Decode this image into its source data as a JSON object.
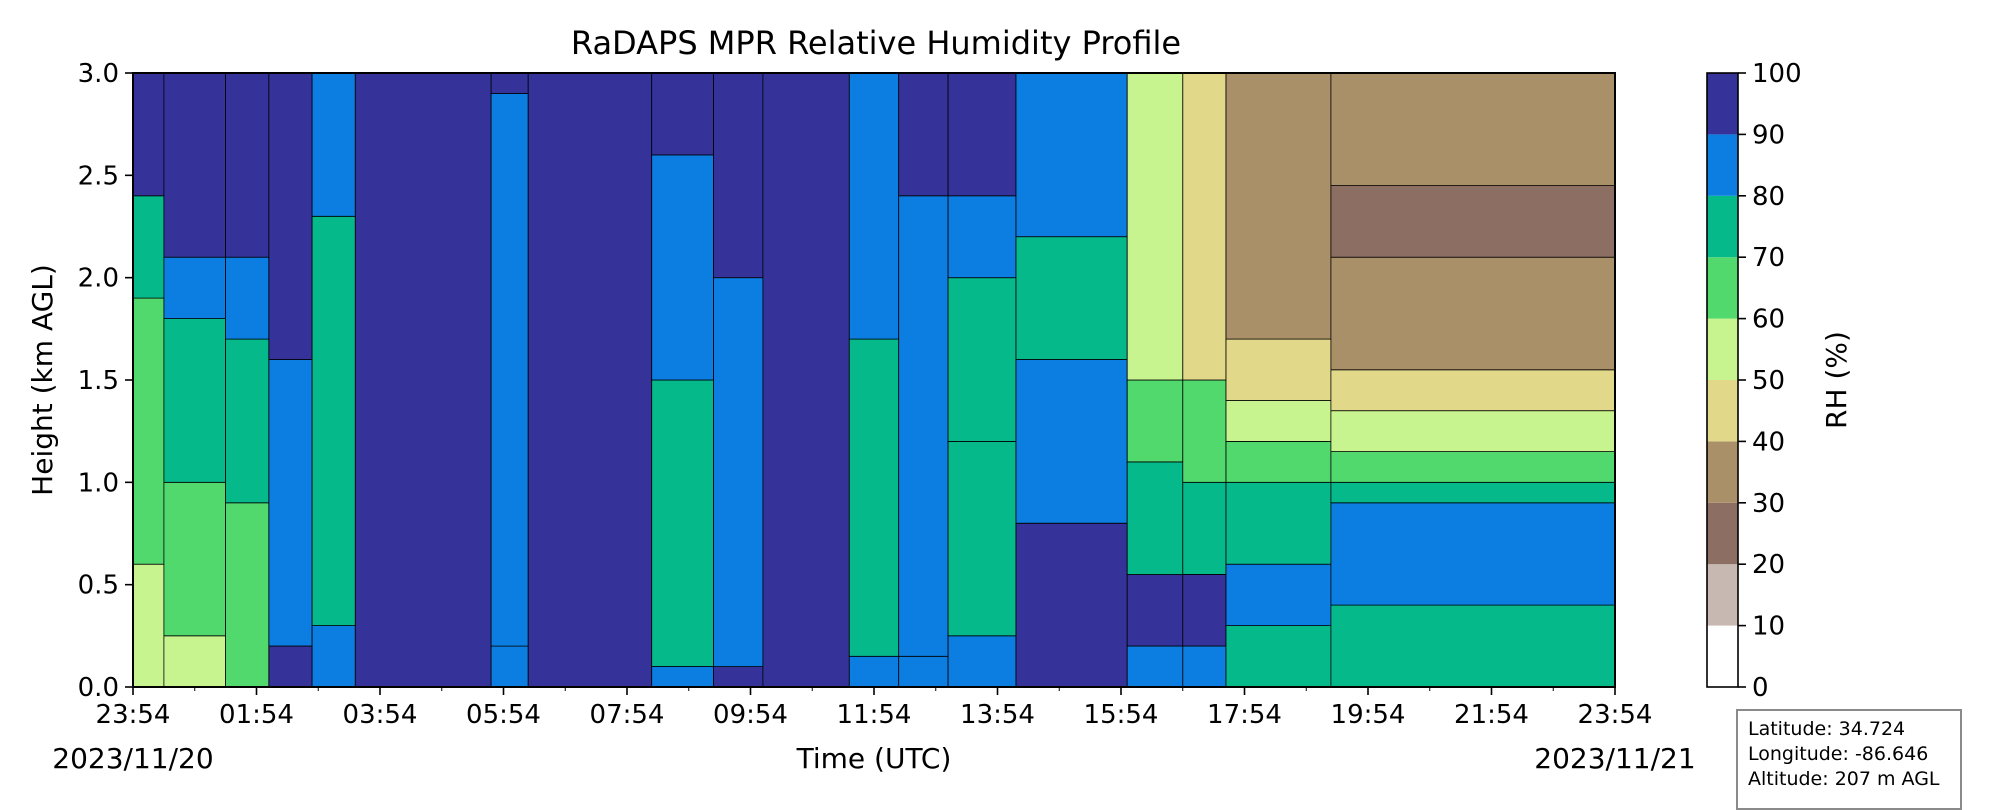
{
  "chart_data": {
    "type": "heatmap",
    "style": "filled contour",
    "title": "RaDAPS MPR Relative Humidity Profile",
    "xlabel": "Time (UTC)",
    "ylabel": "Height (km AGL)",
    "x_ticks": [
      "23:54",
      "01:54",
      "03:54",
      "05:54",
      "07:54",
      "09:54",
      "11:54",
      "13:54",
      "15:54",
      "17:54",
      "19:54",
      "21:54",
      "23:54"
    ],
    "x_range_hours": [
      0,
      24
    ],
    "start_date": "2023/11/20",
    "end_date": "2023/11/21",
    "ylim": [
      0,
      3.0
    ],
    "y_ticks": [
      "0.0",
      "0.5",
      "1.0",
      "1.5",
      "2.0",
      "2.5",
      "3.0"
    ],
    "colorbar": {
      "label": "RH (%)",
      "ticks": [
        "0",
        "10",
        "20",
        "30",
        "40",
        "50",
        "60",
        "70",
        "80",
        "90",
        "100"
      ],
      "levels": [
        0,
        10,
        20,
        30,
        40,
        50,
        60,
        70,
        80,
        90,
        100
      ],
      "colors": [
        "#ffffff",
        "#c8b8b2",
        "#8c6e62",
        "#a99068",
        "#e2d88a",
        "#c7f48e",
        "#52d96e",
        "#05b98b",
        "#0c7ee2",
        "#35329a"
      ]
    },
    "time_segments": [
      {
        "start_h": 0.0,
        "end_h": 0.5,
        "profile": [
          [
            0.6,
            55
          ],
          [
            1.9,
            65
          ],
          [
            2.4,
            75
          ],
          [
            3.0,
            95
          ]
        ]
      },
      {
        "start_h": 0.5,
        "end_h": 1.5,
        "profile": [
          [
            0.25,
            55
          ],
          [
            1.0,
            65
          ],
          [
            1.8,
            75
          ],
          [
            2.1,
            85
          ],
          [
            3.0,
            95
          ]
        ]
      },
      {
        "start_h": 1.5,
        "end_h": 2.2,
        "profile": [
          [
            0.9,
            65
          ],
          [
            1.7,
            75
          ],
          [
            2.1,
            85
          ],
          [
            3.0,
            95
          ]
        ]
      },
      {
        "start_h": 2.2,
        "end_h": 2.9,
        "profile": [
          [
            0.2,
            95
          ],
          [
            1.6,
            85
          ],
          [
            3.0,
            95
          ]
        ]
      },
      {
        "start_h": 2.9,
        "end_h": 3.6,
        "profile": [
          [
            0.3,
            85
          ],
          [
            2.3,
            75
          ],
          [
            3.0,
            85
          ]
        ]
      },
      {
        "start_h": 3.6,
        "end_h": 5.8,
        "profile": [
          [
            3.0,
            95
          ]
        ]
      },
      {
        "start_h": 5.8,
        "end_h": 6.4,
        "profile": [
          [
            0.2,
            85
          ],
          [
            2.9,
            85
          ],
          [
            3.0,
            95
          ]
        ]
      },
      {
        "start_h": 6.4,
        "end_h": 8.4,
        "profile": [
          [
            3.0,
            95
          ]
        ]
      },
      {
        "start_h": 8.4,
        "end_h": 9.4,
        "profile": [
          [
            0.1,
            85
          ],
          [
            1.5,
            75
          ],
          [
            2.6,
            85
          ],
          [
            3.0,
            95
          ]
        ]
      },
      {
        "start_h": 9.4,
        "end_h": 10.2,
        "profile": [
          [
            0.1,
            95
          ],
          [
            2.0,
            85
          ],
          [
            3.0,
            95
          ]
        ]
      },
      {
        "start_h": 10.2,
        "end_h": 11.6,
        "profile": [
          [
            3.0,
            95
          ]
        ]
      },
      {
        "start_h": 11.6,
        "end_h": 12.4,
        "profile": [
          [
            0.15,
            85
          ],
          [
            1.7,
            75
          ],
          [
            3.0,
            85
          ]
        ]
      },
      {
        "start_h": 12.4,
        "end_h": 13.2,
        "profile": [
          [
            0.15,
            85
          ],
          [
            2.4,
            85
          ],
          [
            3.0,
            95
          ]
        ]
      },
      {
        "start_h": 13.2,
        "end_h": 14.3,
        "profile": [
          [
            0.25,
            85
          ],
          [
            1.2,
            75
          ],
          [
            2.0,
            75
          ],
          [
            2.4,
            85
          ],
          [
            3.0,
            95
          ]
        ]
      },
      {
        "start_h": 14.3,
        "end_h": 16.1,
        "profile": [
          [
            0.8,
            95
          ],
          [
            1.6,
            85
          ],
          [
            2.2,
            75
          ],
          [
            3.0,
            85
          ]
        ]
      },
      {
        "start_h": 16.1,
        "end_h": 17.0,
        "profile": [
          [
            0.2,
            85
          ],
          [
            0.55,
            95
          ],
          [
            1.1,
            75
          ],
          [
            1.5,
            65
          ],
          [
            3.0,
            55
          ]
        ]
      },
      {
        "start_h": 17.0,
        "end_h": 17.7,
        "profile": [
          [
            0.2,
            85
          ],
          [
            0.55,
            95
          ],
          [
            1.0,
            75
          ],
          [
            1.5,
            65
          ],
          [
            3.0,
            45
          ]
        ]
      },
      {
        "start_h": 17.7,
        "end_h": 19.4,
        "profile": [
          [
            0.3,
            75
          ],
          [
            0.6,
            85
          ],
          [
            1.0,
            75
          ],
          [
            1.2,
            65
          ],
          [
            1.4,
            55
          ],
          [
            1.7,
            45
          ],
          [
            3.0,
            35
          ]
        ]
      },
      {
        "start_h": 19.4,
        "end_h": 24.0,
        "profile": [
          [
            0.4,
            75
          ],
          [
            0.9,
            85
          ],
          [
            1.0,
            75
          ],
          [
            1.15,
            65
          ],
          [
            1.35,
            55
          ],
          [
            1.55,
            45
          ],
          [
            2.1,
            35
          ],
          [
            2.45,
            25
          ],
          [
            3.0,
            35
          ]
        ]
      }
    ],
    "grid": false,
    "legend": "colorbar-right"
  },
  "info": {
    "latitude": "Latitude: 34.724",
    "longitude": "Longitude: -86.646",
    "altitude": "Altitude: 207 m AGL"
  }
}
